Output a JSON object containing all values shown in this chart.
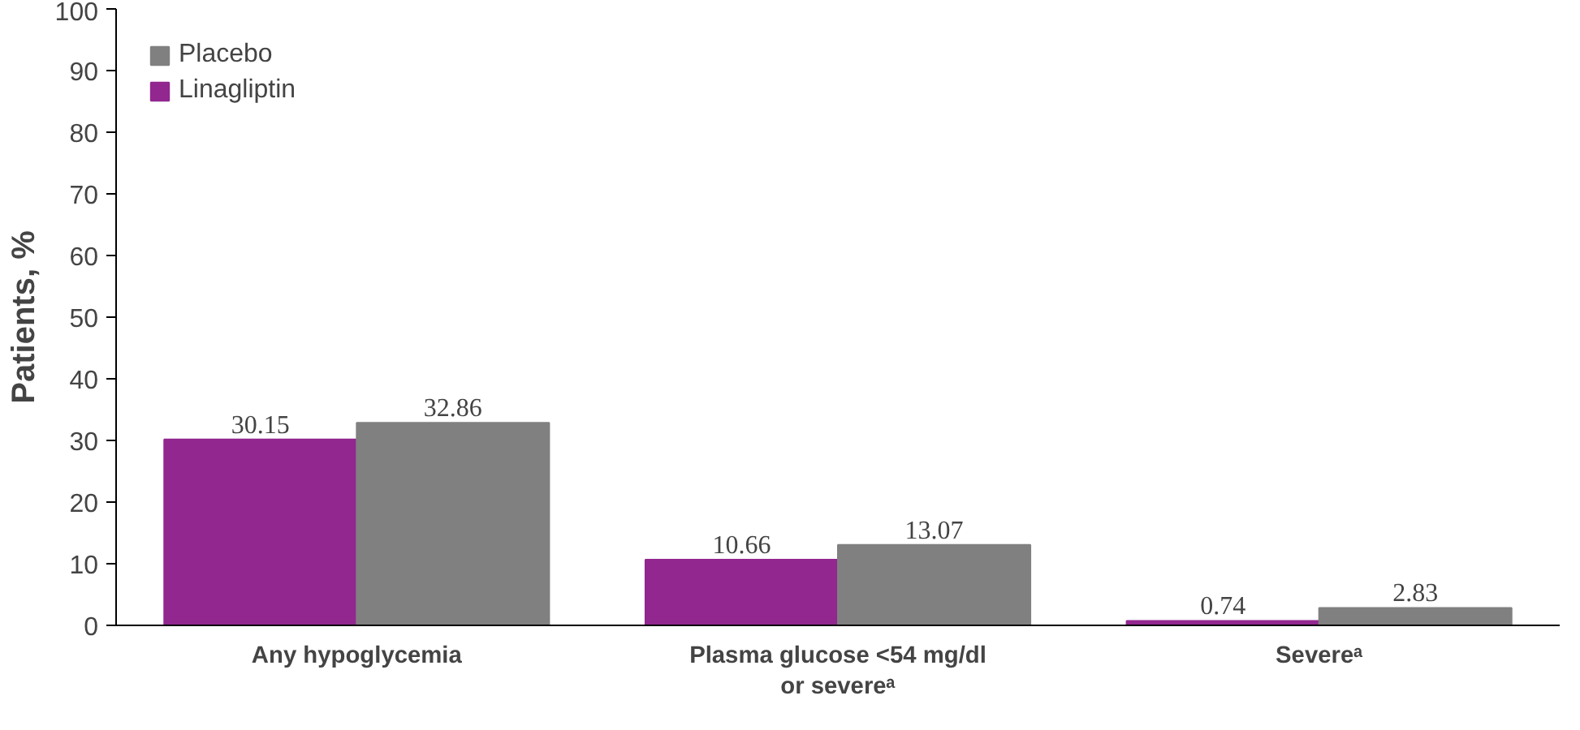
{
  "chart_data": {
    "type": "bar",
    "ylabel": "Patients, %",
    "categories": [
      "Any hypoglycemia",
      "Plasma glucose <54 mg/dl or severeᵃ",
      "Severeᵃ"
    ],
    "series": [
      {
        "name": "Linagliptin",
        "color": "#92278f",
        "values": [
          30.15,
          10.66,
          0.74
        ]
      },
      {
        "name": "Placebo",
        "color": "#808080",
        "values": [
          32.86,
          13.07,
          2.83
        ]
      }
    ],
    "ylim": [
      0,
      100
    ],
    "yticks": [
      0,
      10,
      20,
      30,
      40,
      50,
      60,
      70,
      80,
      90,
      100
    ],
    "data_labels": true,
    "legend": "top left",
    "grid": false
  }
}
